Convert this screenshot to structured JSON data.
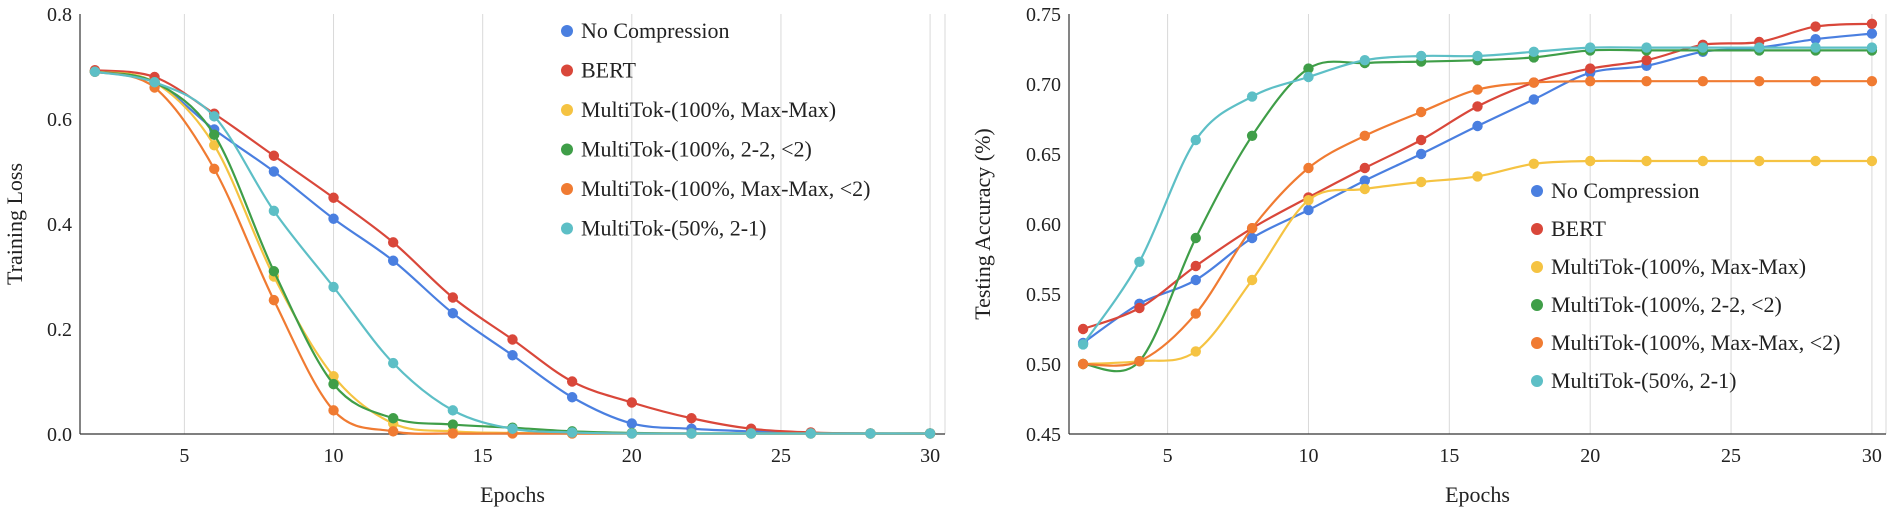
{
  "chart_data": [
    {
      "type": "line",
      "title": "",
      "xlabel": "Epochs",
      "ylabel": "Training Loss",
      "xlim": [
        1.5,
        30.5
      ],
      "ylim": [
        0,
        0.8
      ],
      "xticks": [
        5,
        10,
        15,
        20,
        25,
        30
      ],
      "yticks": [
        0,
        0.2,
        0.4,
        0.6,
        0.8
      ],
      "ytick_labels": [
        "0.0",
        "0.2",
        "0.4",
        "0.6",
        "0.8"
      ],
      "grid": "vertical",
      "legend": "top-right",
      "series": [
        {
          "name": "No Compression",
          "color": "#4a7fe0",
          "x": [
            2,
            4,
            6,
            8,
            10,
            12,
            14,
            16,
            18,
            20,
            22,
            24,
            26,
            28,
            30
          ],
          "y": [
            0.69,
            0.67,
            0.58,
            0.5,
            0.41,
            0.33,
            0.23,
            0.15,
            0.07,
            0.02,
            0.01,
            0.005,
            0.002,
            0.001,
            0.001
          ]
        },
        {
          "name": "BERT",
          "color": "#d9473a",
          "x": [
            2,
            4,
            6,
            8,
            10,
            12,
            14,
            16,
            18,
            20,
            22,
            24,
            26,
            28,
            30
          ],
          "y": [
            0.693,
            0.68,
            0.61,
            0.53,
            0.45,
            0.365,
            0.26,
            0.18,
            0.1,
            0.06,
            0.03,
            0.01,
            0.003,
            0.001,
            0.001
          ]
        },
        {
          "name": "MultiTok-(100%, Max-Max)",
          "color": "#f5c342",
          "x": [
            2,
            4,
            6,
            8,
            10,
            12,
            14,
            16,
            18,
            20,
            22,
            24,
            26,
            28,
            30
          ],
          "y": [
            0.69,
            0.67,
            0.55,
            0.3,
            0.11,
            0.02,
            0.005,
            0.002,
            0.001,
            0.001,
            0.001,
            0.001,
            0.001,
            0.001,
            0.001
          ]
        },
        {
          "name": "MultiTok-(100%, 2-2, <2)",
          "color": "#3f9e48",
          "x": [
            2,
            4,
            6,
            8,
            10,
            12,
            14,
            16,
            18,
            20,
            22,
            24,
            26,
            28,
            30
          ],
          "y": [
            0.69,
            0.67,
            0.57,
            0.31,
            0.095,
            0.03,
            0.018,
            0.012,
            0.005,
            0.002,
            0.001,
            0.001,
            0.001,
            0.001,
            0.001
          ]
        },
        {
          "name": "MultiTok-(100%, Max-Max, <2)",
          "color": "#f07b32",
          "x": [
            2,
            4,
            6,
            8,
            10,
            12,
            14,
            16,
            18,
            20,
            22,
            24,
            26,
            28,
            30
          ],
          "y": [
            0.69,
            0.66,
            0.505,
            0.255,
            0.045,
            0.005,
            0.001,
            0.001,
            0.001,
            0.001,
            0.001,
            0.001,
            0.001,
            0.001,
            0.001
          ]
        },
        {
          "name": "MultiTok-(50%, 2-1)",
          "color": "#5dbfc6",
          "x": [
            2,
            4,
            6,
            8,
            10,
            12,
            14,
            16,
            18,
            20,
            22,
            24,
            26,
            28,
            30
          ],
          "y": [
            0.69,
            0.67,
            0.605,
            0.425,
            0.28,
            0.135,
            0.045,
            0.01,
            0.003,
            0.001,
            0.001,
            0.001,
            0.001,
            0.001,
            0.001
          ]
        }
      ]
    },
    {
      "type": "line",
      "title": "",
      "xlabel": "Epochs",
      "ylabel": "Testing Accuracy (%)",
      "xlim": [
        1.5,
        30.5
      ],
      "ylim": [
        0.45,
        0.75
      ],
      "xticks": [
        5,
        10,
        15,
        20,
        25,
        30
      ],
      "yticks": [
        0.45,
        0.5,
        0.55,
        0.6,
        0.65,
        0.7,
        0.75
      ],
      "ytick_labels": [
        "0.45",
        "0.50",
        "0.55",
        "0.60",
        "0.65",
        "0.70",
        "0.75"
      ],
      "grid": "vertical",
      "legend": "center-right",
      "series": [
        {
          "name": "No Compression",
          "color": "#4a7fe0",
          "x": [
            2,
            4,
            6,
            8,
            10,
            12,
            14,
            16,
            18,
            20,
            22,
            24,
            26,
            28,
            30
          ],
          "y": [
            0.515,
            0.543,
            0.56,
            0.59,
            0.61,
            0.631,
            0.65,
            0.67,
            0.689,
            0.708,
            0.713,
            0.723,
            0.726,
            0.732,
            0.736
          ]
        },
        {
          "name": "BERT",
          "color": "#d9473a",
          "x": [
            2,
            4,
            6,
            8,
            10,
            12,
            14,
            16,
            18,
            20,
            22,
            24,
            26,
            28,
            30
          ],
          "y": [
            0.525,
            0.54,
            0.57,
            0.597,
            0.619,
            0.64,
            0.66,
            0.684,
            0.701,
            0.711,
            0.717,
            0.728,
            0.73,
            0.741,
            0.743
          ]
        },
        {
          "name": "MultiTok-(100%, Max-Max)",
          "color": "#f5c342",
          "x": [
            2,
            4,
            6,
            8,
            10,
            12,
            14,
            16,
            18,
            20,
            22,
            24,
            26,
            28,
            30
          ],
          "y": [
            0.5,
            0.502,
            0.509,
            0.56,
            0.617,
            0.625,
            0.63,
            0.634,
            0.643,
            0.645,
            0.645,
            0.645,
            0.645,
            0.645,
            0.645
          ]
        },
        {
          "name": "MultiTok-(100%, 2-2, <2)",
          "color": "#3f9e48",
          "x": [
            2,
            4,
            6,
            8,
            10,
            12,
            14,
            16,
            18,
            20,
            22,
            24,
            26,
            28,
            30
          ],
          "y": [
            0.5,
            0.502,
            0.59,
            0.663,
            0.711,
            0.715,
            0.716,
            0.717,
            0.719,
            0.724,
            0.724,
            0.724,
            0.724,
            0.724,
            0.724
          ]
        },
        {
          "name": "MultiTok-(100%, Max-Max, <2)",
          "color": "#f07b32",
          "x": [
            2,
            4,
            6,
            8,
            10,
            12,
            14,
            16,
            18,
            20,
            22,
            24,
            26,
            28,
            30
          ],
          "y": [
            0.5,
            0.502,
            0.536,
            0.597,
            0.64,
            0.663,
            0.68,
            0.696,
            0.701,
            0.702,
            0.702,
            0.702,
            0.702,
            0.702,
            0.702
          ]
        },
        {
          "name": "MultiTok-(50%, 2-1)",
          "color": "#5dbfc6",
          "x": [
            2,
            4,
            6,
            8,
            10,
            12,
            14,
            16,
            18,
            20,
            22,
            24,
            26,
            28,
            30
          ],
          "y": [
            0.514,
            0.573,
            0.66,
            0.691,
            0.705,
            0.717,
            0.72,
            0.72,
            0.723,
            0.726,
            0.726,
            0.726,
            0.726,
            0.726,
            0.726
          ]
        }
      ]
    }
  ]
}
